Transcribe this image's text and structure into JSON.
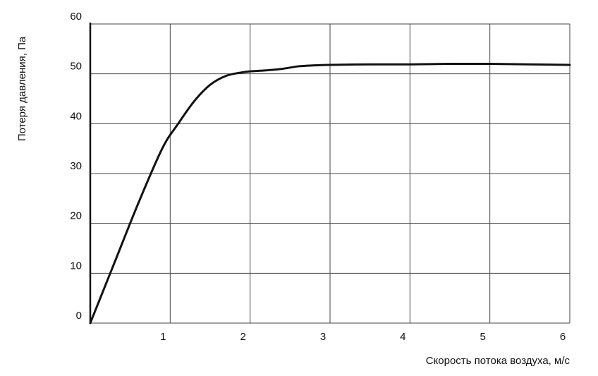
{
  "chart_data": {
    "type": "line",
    "title": "",
    "xlabel": "Скорость потока воздуха, м/с",
    "ylabel": "Потеря давления, Па",
    "xlim": [
      0,
      6
    ],
    "ylim": [
      0,
      60
    ],
    "xticks": [
      1,
      2,
      3,
      4,
      5,
      6
    ],
    "xtick_labels": [
      "1",
      "2",
      "3",
      "4",
      "5",
      "6"
    ],
    "yticks": [
      0,
      10,
      20,
      30,
      40,
      50,
      60
    ],
    "ytick_labels": [
      "0",
      "10",
      "20",
      "30",
      "40",
      "50",
      "60"
    ],
    "grid": true,
    "legend": "none",
    "line_color": "#111111",
    "series": [
      {
        "x": [
          0,
          0.3,
          0.6,
          0.9,
          1.1,
          1.3,
          1.5,
          1.7,
          1.9,
          2.0,
          2.2,
          2.4,
          2.6,
          2.8,
          3.0,
          3.5,
          4.0,
          4.5,
          5.0,
          5.5,
          6.0
        ],
        "values": [
          0,
          12,
          24,
          35,
          40,
          44.5,
          47.8,
          49.6,
          50.3,
          50.5,
          50.7,
          51.0,
          51.5,
          51.7,
          51.8,
          51.9,
          51.9,
          52.0,
          52.0,
          51.9,
          51.8
        ]
      }
    ]
  }
}
